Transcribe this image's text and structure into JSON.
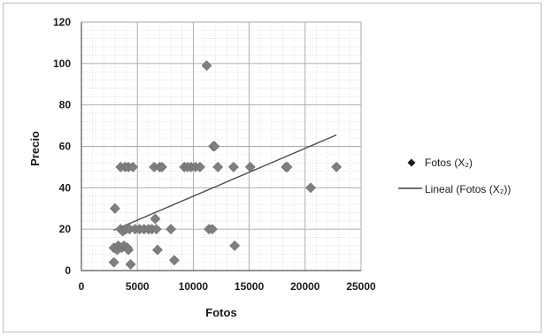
{
  "chart_data": {
    "type": "scatter",
    "title": "",
    "xlabel": "Fotos",
    "ylabel": "Precio",
    "xlim": [
      0,
      25000
    ],
    "ylim": [
      0,
      120
    ],
    "x_ticks": [
      "0",
      "5000",
      "10000",
      "15000",
      "20000",
      "25000"
    ],
    "y_ticks": [
      "0",
      "20",
      "40",
      "60",
      "80",
      "100",
      "120"
    ],
    "grid": true,
    "legend_position": "right",
    "series": [
      {
        "name": "Fotos (X₂)",
        "kind": "scatter",
        "marker": "diamond",
        "color": "#7f7f7f",
        "points": [
          [
            2900,
            4
          ],
          [
            2900,
            11
          ],
          [
            3000,
            30
          ],
          [
            3200,
            10
          ],
          [
            3300,
            12
          ],
          [
            3500,
            20
          ],
          [
            3500,
            50
          ],
          [
            3600,
            11
          ],
          [
            3700,
            19
          ],
          [
            3800,
            12
          ],
          [
            3900,
            50
          ],
          [
            4000,
            20
          ],
          [
            4100,
            11
          ],
          [
            4200,
            50
          ],
          [
            4200,
            10
          ],
          [
            4300,
            20
          ],
          [
            4400,
            3
          ],
          [
            4600,
            50
          ],
          [
            4800,
            20
          ],
          [
            5200,
            20
          ],
          [
            5600,
            20
          ],
          [
            6000,
            20
          ],
          [
            6300,
            20
          ],
          [
            6500,
            50
          ],
          [
            6600,
            25
          ],
          [
            6700,
            20
          ],
          [
            6800,
            10
          ],
          [
            7000,
            50
          ],
          [
            7200,
            50
          ],
          [
            8000,
            20
          ],
          [
            8300,
            5
          ],
          [
            9200,
            50
          ],
          [
            9500,
            50
          ],
          [
            9800,
            50
          ],
          [
            10200,
            50
          ],
          [
            10600,
            50
          ],
          [
            11200,
            99
          ],
          [
            11400,
            20
          ],
          [
            11700,
            20
          ],
          [
            11800,
            60
          ],
          [
            11900,
            60
          ],
          [
            12200,
            50
          ],
          [
            13600,
            50
          ],
          [
            13700,
            12
          ],
          [
            15100,
            50
          ],
          [
            18300,
            50
          ],
          [
            18400,
            50
          ],
          [
            20500,
            40
          ],
          [
            22800,
            50
          ]
        ]
      },
      {
        "name": "Lineal (Fotos (X₂))",
        "kind": "trendline",
        "color": "#4a4a4a",
        "x": [
          2900,
          22800
        ],
        "y": [
          19.5,
          65.5
        ]
      }
    ]
  }
}
